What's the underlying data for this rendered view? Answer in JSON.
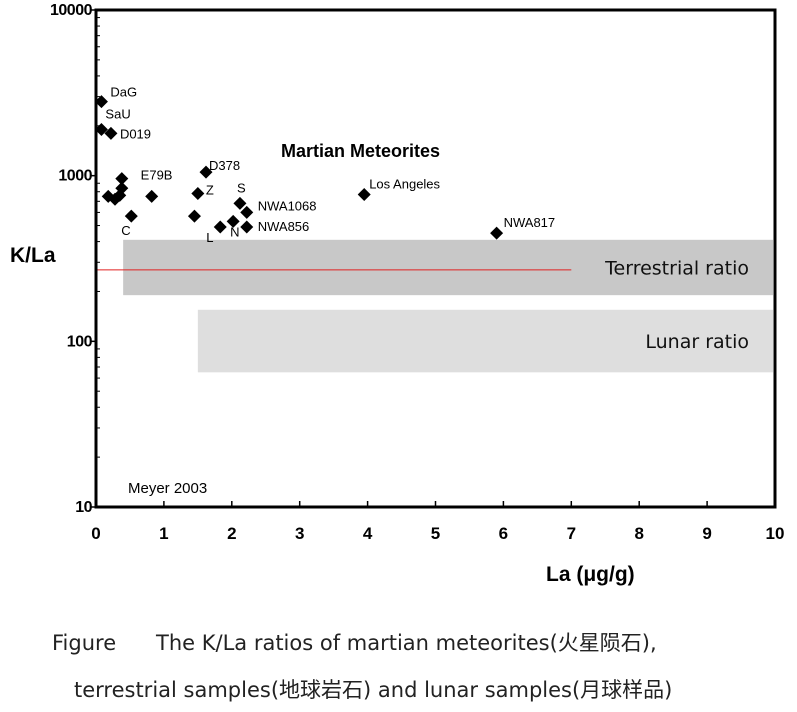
{
  "chart_data": {
    "type": "scatter",
    "x_axis": {
      "label": "La  (μg/g)",
      "range": [
        0,
        10
      ],
      "ticks": [
        0,
        1,
        2,
        3,
        4,
        5,
        6,
        7,
        8,
        9,
        10
      ]
    },
    "y_axis": {
      "label": "K/La",
      "scale": "log",
      "range": [
        10,
        10000
      ],
      "ticks": [
        10,
        100,
        1000,
        10000
      ]
    },
    "chart_title": "Martian Meteorites",
    "source_note": "Meyer 2003",
    "grid": false,
    "marker": "diamond",
    "marker_color": "#000000",
    "points": [
      {
        "x": 0.08,
        "y": 2800,
        "label": "DaG"
      },
      {
        "x": 0.08,
        "y": 1900,
        "label": "SaU"
      },
      {
        "x": 0.22,
        "y": 1800,
        "label": "D019"
      },
      {
        "x": 0.38,
        "y": 960,
        "label": ""
      },
      {
        "x": 0.38,
        "y": 840,
        "label": ""
      },
      {
        "x": 0.18,
        "y": 750,
        "label": ""
      },
      {
        "x": 0.28,
        "y": 720,
        "label": ""
      },
      {
        "x": 0.35,
        "y": 760,
        "label": ""
      },
      {
        "x": 0.52,
        "y": 570,
        "label": "C"
      },
      {
        "x": 0.82,
        "y": 750,
        "label": "E79B"
      },
      {
        "x": 1.62,
        "y": 1050,
        "label": "D378"
      },
      {
        "x": 1.5,
        "y": 780,
        "label": "Z"
      },
      {
        "x": 1.45,
        "y": 570,
        "label": ""
      },
      {
        "x": 1.83,
        "y": 490,
        "label": "L"
      },
      {
        "x": 2.02,
        "y": 530,
        "label": "N"
      },
      {
        "x": 2.12,
        "y": 680,
        "label": "S"
      },
      {
        "x": 2.22,
        "y": 600,
        "label": "NWA1068"
      },
      {
        "x": 2.22,
        "y": 490,
        "label": "NWA856"
      },
      {
        "x": 3.95,
        "y": 770,
        "label": "Los Angeles"
      },
      {
        "x": 5.9,
        "y": 450,
        "label": "NWA817"
      }
    ],
    "bands": [
      {
        "label": "Terrestrial ratio",
        "x": [
          0.4,
          10
        ],
        "y": [
          190,
          410
        ],
        "color": "#c8c8c8"
      },
      {
        "label": "Lunar ratio",
        "x": [
          1.5,
          10
        ],
        "y": [
          65,
          155
        ],
        "color": "#dedede"
      }
    ],
    "reference_line": {
      "x": [
        0,
        7
      ],
      "y": 270,
      "color": "#e02020"
    }
  },
  "caption": {
    "tag": "Figure",
    "line1": "The K/La ratios of martian meteorites(火星陨石),",
    "line2": "terrestrial samples(地球岩石) and lunar samples(月球样品)"
  }
}
